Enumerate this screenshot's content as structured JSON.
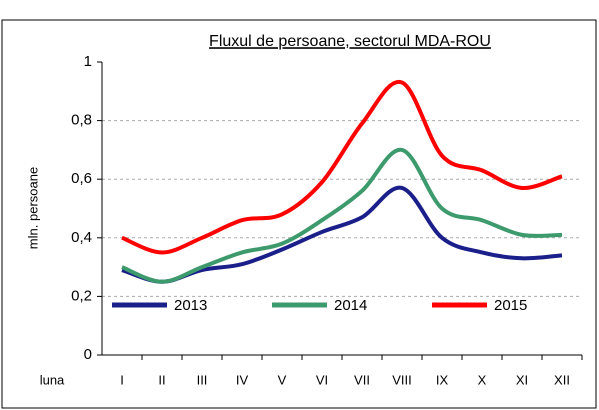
{
  "chart_data": {
    "type": "line",
    "title": "Fluxul de persoane, sectorul MDA-ROU",
    "y_label": "mln. persoane",
    "x_label": "luna",
    "categories": [
      "I",
      "II",
      "III",
      "IV",
      "V",
      "VI",
      "VII",
      "VIII",
      "IX",
      "X",
      "XI",
      "XII"
    ],
    "series": [
      {
        "name": "2013",
        "color": "#1a1f8a",
        "values": [
          0.29,
          0.25,
          0.29,
          0.31,
          0.36,
          0.42,
          0.47,
          0.57,
          0.4,
          0.35,
          0.33,
          0.34
        ]
      },
      {
        "name": "2014",
        "color": "#3d9a6c",
        "values": [
          0.3,
          0.25,
          0.3,
          0.35,
          0.38,
          0.46,
          0.56,
          0.7,
          0.5,
          0.46,
          0.41,
          0.41
        ]
      },
      {
        "name": "2015",
        "color": "#ff0000",
        "values": [
          0.4,
          0.35,
          0.4,
          0.46,
          0.48,
          0.59,
          0.79,
          0.93,
          0.68,
          0.63,
          0.57,
          0.61
        ]
      }
    ],
    "ylim": [
      0,
      1
    ],
    "yticks": [
      0,
      {
        "value": 0.2,
        "label": "0,2"
      },
      {
        "value": 0.4,
        "label": "0,4"
      },
      {
        "value": 0.6,
        "label": "0,6"
      },
      {
        "value": 0.8,
        "label": "0,8"
      },
      1
    ],
    "grid": true,
    "smooth": true,
    "legend": "lower center"
  }
}
